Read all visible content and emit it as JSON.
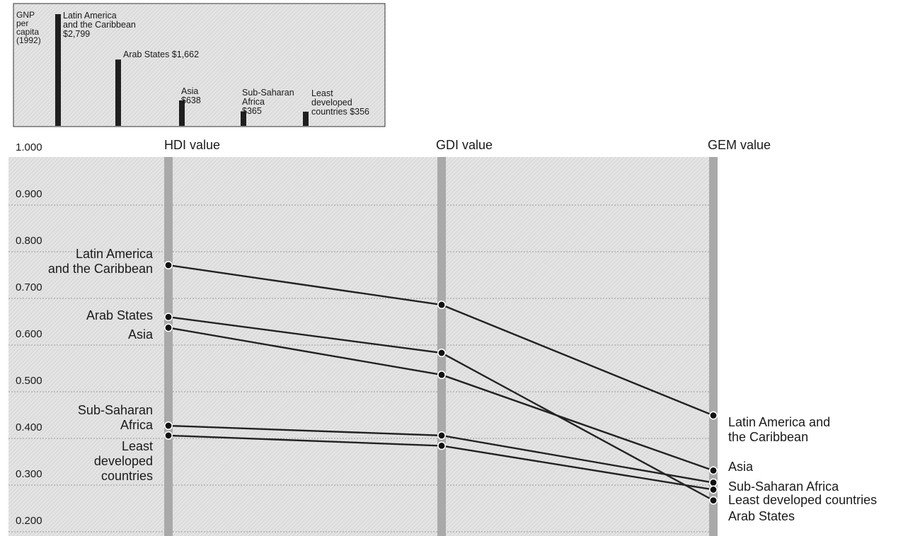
{
  "chart_data": [
    {
      "type": "bar",
      "title": "GNP per capita (1992)",
      "title_lines": [
        "GNP",
        "per",
        "capita",
        "(1992)"
      ],
      "categories": [
        "Latin America and the Caribbean",
        "Arab States",
        "Asia",
        "Sub-Saharan Africa",
        "Least developed countries"
      ],
      "values": [
        2799,
        1662,
        638,
        365,
        356
      ],
      "value_labels": [
        "$2,799",
        "$1,662",
        "$638",
        "$365",
        "$356"
      ],
      "label_lines": [
        [
          "Latin America",
          "and the Caribbean",
          "$2,799"
        ],
        [
          "Arab States $1,662"
        ],
        [
          "Asia",
          "$638"
        ],
        [
          "Sub-Saharan",
          "Africa",
          "$365"
        ],
        [
          "Least",
          "developed",
          "countries $356"
        ]
      ],
      "colors": {
        "bar": "#1f1f1f",
        "background": "#e6e6e6"
      }
    },
    {
      "type": "line",
      "categories": [
        "HDI value",
        "GDI value",
        "GEM value"
      ],
      "ylim": [
        0.2,
        1.0
      ],
      "yticks": [
        "1.000",
        "0.900",
        "0.800",
        "0.700",
        "0.600",
        "0.500",
        "0.400",
        "0.300",
        "0.200"
      ],
      "grid": true,
      "series": [
        {
          "name": "Latin America and the Caribbean",
          "values": [
            0.747,
            0.662,
            0.425
          ]
        },
        {
          "name": "Arab States",
          "values": [
            0.636,
            0.559,
            0.243
          ]
        },
        {
          "name": "Asia",
          "values": [
            0.613,
            0.512,
            0.307
          ]
        },
        {
          "name": "Sub-Saharan Africa",
          "values": [
            0.403,
            0.382,
            0.281
          ]
        },
        {
          "name": "Least developed countries",
          "values": [
            0.382,
            0.36,
            0.266
          ]
        }
      ],
      "left_labels": [
        [
          "Latin America",
          "and the Caribbean"
        ],
        [
          "Arab States"
        ],
        [
          "Asia"
        ],
        [
          "Sub-Saharan",
          "Africa"
        ],
        [
          "Least",
          "developed",
          "countries"
        ]
      ],
      "right_labels": [
        [
          "Latin America and",
          "the Caribbean"
        ],
        [
          "Asia"
        ],
        [
          "Sub-Saharan Africa"
        ],
        [
          "Least developed countries"
        ],
        [
          "Arab States"
        ]
      ],
      "colors": {
        "line": "#222222",
        "axis_band": "#a9a9a9",
        "background": "#e3e3e3",
        "grid": "#9c9c9c"
      }
    }
  ]
}
